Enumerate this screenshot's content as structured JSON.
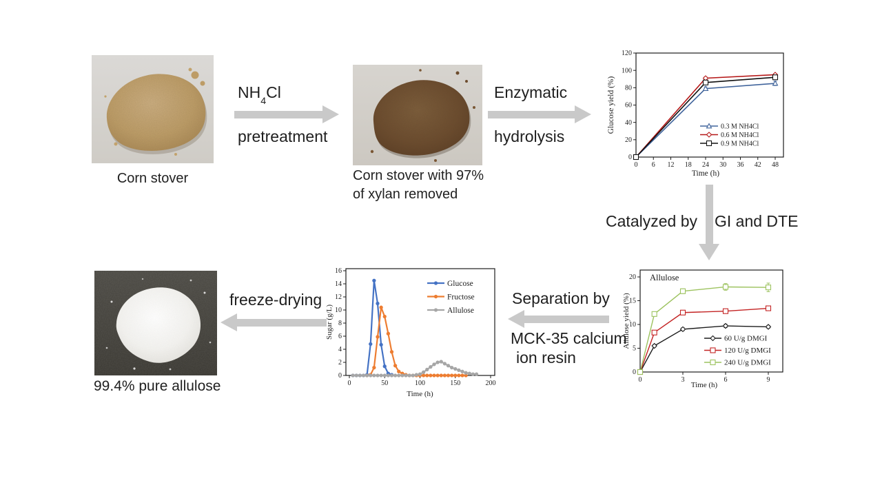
{
  "colors": {
    "arrow": "#c9c9c9",
    "text": "#1f1f1f"
  },
  "photos": {
    "corn_stover": {
      "caption": "Corn stover"
    },
    "pretreated": {
      "caption_line1": "Corn stover with 97%",
      "caption_line2": "of xylan removed"
    },
    "allulose": {
      "caption": "99.4% pure allulose"
    }
  },
  "labels": {
    "nh4cl_prefix": "NH",
    "nh4cl_sub": "4",
    "nh4cl_suffix": "Cl",
    "pretreatment": "pretreatment",
    "enzymatic": "Enzymatic",
    "hydrolysis": "hydrolysis",
    "catalyzed_by": "Catalyzed by",
    "gi_dte": "GI and DTE",
    "separation_by": "Separation by",
    "mck": "MCK-35 calcium",
    "ion_resin": "ion resin",
    "freeze_drying": "freeze-drying"
  },
  "chart_data": [
    {
      "id": "glucose-yield",
      "type": "line",
      "xlabel": "Time (h)",
      "ylabel": "Glucose yield (%)",
      "xlim": [
        0,
        50.9
      ],
      "ylim": [
        0,
        120
      ],
      "xticks": [
        0,
        6,
        12,
        18,
        24,
        30,
        36,
        42,
        48
      ],
      "yticks": [
        0,
        20,
        40,
        60,
        80,
        100,
        120
      ],
      "grid": false,
      "legend_position": "inside-right-middle",
      "series": [
        {
          "name": "0.3 M NH4Cl",
          "color": "#3f639b",
          "marker": "triangle-open",
          "x": [
            0,
            24,
            48
          ],
          "y": [
            0,
            79,
            85
          ],
          "err": [
            0,
            2,
            2.5
          ]
        },
        {
          "name": "0.6 M NH4Cl",
          "color": "#b51717",
          "marker": "diamond-open",
          "x": [
            0,
            24,
            48
          ],
          "y": [
            0,
            91,
            95
          ],
          "err": [
            0,
            1.5,
            1.5
          ]
        },
        {
          "name": "0.9 M NH4Cl",
          "color": "#111111",
          "marker": "square-open",
          "x": [
            0,
            24,
            48
          ],
          "y": [
            0,
            86,
            92
          ],
          "err": [
            0,
            1.5,
            1.5
          ]
        }
      ]
    },
    {
      "id": "allulose-yield",
      "type": "line",
      "title_inside": "Allulose",
      "xlabel": "Time (h)",
      "ylabel": "Allulose yield (%)",
      "xlim": [
        0,
        10
      ],
      "ylim": [
        0,
        21.4
      ],
      "xticks": [
        0,
        3,
        6,
        9
      ],
      "yticks": [
        0,
        5,
        10,
        15,
        20
      ],
      "grid": false,
      "legend_position": "inside-right-bottom",
      "series": [
        {
          "name": "60 U/g DMGI",
          "color": "#1b1b1b",
          "marker": "diamond-open",
          "x": [
            0,
            1,
            3,
            6,
            9
          ],
          "y": [
            0,
            5.5,
            9.0,
            9.7,
            9.5
          ],
          "err": [
            0,
            0.25,
            0.3,
            0.35,
            0.3
          ]
        },
        {
          "name": "120 U/g DMGI",
          "color": "#c32222",
          "marker": "square-open",
          "x": [
            0,
            1,
            3,
            6,
            9
          ],
          "y": [
            0,
            8.3,
            12.5,
            12.8,
            13.4
          ],
          "err": [
            0,
            0.3,
            0.35,
            0.35,
            0.5
          ]
        },
        {
          "name": "240 U/g DMGI",
          "color": "#9cc25e",
          "marker": "square-open",
          "x": [
            0,
            1,
            3,
            6,
            9
          ],
          "y": [
            0,
            12.2,
            17.0,
            17.9,
            17.8
          ],
          "err": [
            0,
            0.45,
            0.5,
            0.7,
            0.9
          ]
        }
      ]
    },
    {
      "id": "sugar-separation",
      "type": "line",
      "xlabel": "Time (h)",
      "ylabel": "Sugar (g/L)",
      "xlim": [
        0,
        205
      ],
      "ylim": [
        0,
        16.3
      ],
      "xticks": [
        0,
        50,
        100,
        150,
        200
      ],
      "yticks": [
        0,
        2,
        4,
        6,
        8,
        10,
        12,
        14,
        16
      ],
      "grid": false,
      "legend_position": "inside-right-top",
      "series": [
        {
          "name": "Glucose",
          "color": "#4472c4",
          "marker": "circle",
          "x": [
            5,
            10,
            15,
            20,
            25,
            30,
            35,
            40,
            45,
            50,
            55,
            60
          ],
          "y": [
            0,
            0,
            0,
            0,
            0.1,
            4.8,
            14.5,
            11.0,
            4.7,
            1.4,
            0.3,
            0.1
          ]
        },
        {
          "name": "Fructose",
          "color": "#ed7d31",
          "marker": "circle",
          "x": [
            25,
            30,
            35,
            40,
            45,
            50,
            55,
            60,
            65,
            70,
            75,
            80,
            85,
            90,
            95,
            100,
            105,
            110,
            115,
            120,
            125,
            130,
            135,
            140,
            145,
            150,
            155,
            160,
            165
          ],
          "y": [
            0,
            0.1,
            1.2,
            5.9,
            10.4,
            9.0,
            6.4,
            3.6,
            1.5,
            0.6,
            0.3,
            0.1,
            0,
            0,
            0,
            0,
            0,
            0,
            0,
            0,
            0,
            0,
            0,
            0,
            0,
            0,
            0,
            0,
            0
          ]
        },
        {
          "name": "Allulose",
          "color": "#a6a6a6",
          "marker": "circle",
          "x": [
            5,
            10,
            15,
            20,
            25,
            30,
            35,
            40,
            45,
            50,
            55,
            60,
            65,
            70,
            75,
            80,
            85,
            90,
            95,
            100,
            105,
            110,
            115,
            120,
            125,
            130,
            135,
            140,
            145,
            150,
            155,
            160,
            165,
            170,
            175,
            180
          ],
          "y": [
            0,
            0,
            0,
            0,
            0,
            0,
            0,
            0,
            0,
            0,
            0,
            0,
            0,
            0,
            0,
            0,
            0,
            0,
            0.1,
            0.2,
            0.5,
            0.9,
            1.3,
            1.7,
            2.0,
            2.1,
            1.8,
            1.5,
            1.2,
            1.0,
            0.8,
            0.6,
            0.4,
            0.3,
            0.2,
            0.2
          ]
        }
      ]
    }
  ]
}
